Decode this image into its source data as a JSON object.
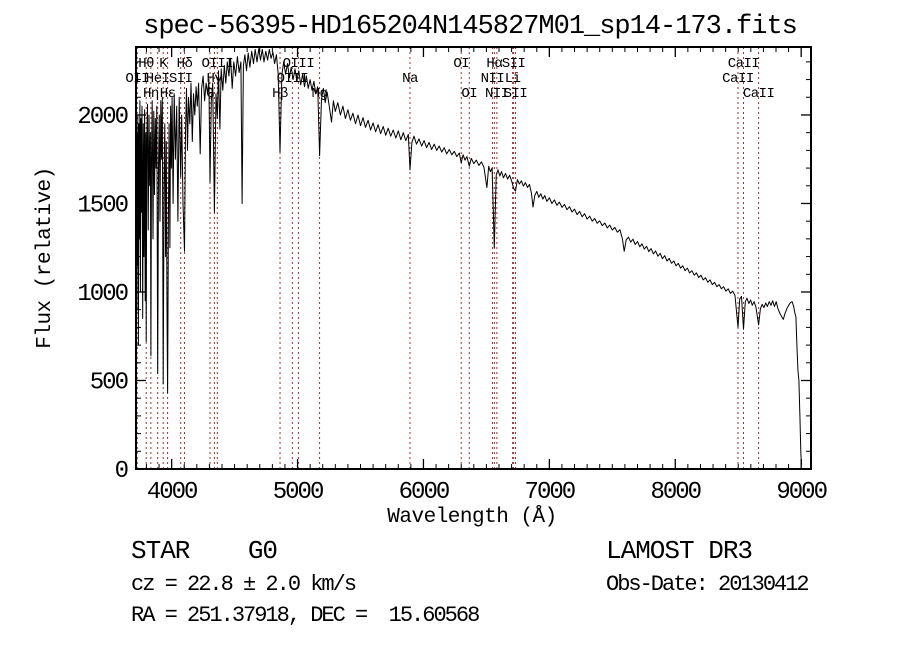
{
  "title": "spec-56395-HD165204N145827M01_sp14-173.fits",
  "annotations": {
    "class_label": "STAR    G0",
    "cz_label": "cz = 22.8 ± 2.0 km/s",
    "radec_label": "RA = 251.37918, DEC =  15.60568",
    "survey_label": "LAMOST DR3",
    "obsdate_label": "Obs-Date: 20130412"
  },
  "colors": {
    "spectrum": "#000000",
    "spectral_line_marker": "#993333",
    "frame": "#000000",
    "background": "#ffffff"
  },
  "chart_data": {
    "type": "line",
    "title": "spec-56395-HD165204N145827M01_sp14-173.fits",
    "xlabel": "Wavelength (Å)",
    "ylabel": "Flux (relative)",
    "xlim": [
      3717,
      9078
    ],
    "ylim": [
      0,
      2384
    ],
    "x_ticks": [
      4000,
      5000,
      6000,
      7000,
      8000,
      9000
    ],
    "y_ticks": [
      0,
      500,
      1000,
      1500,
      2000
    ],
    "x_minor_step": 100,
    "y_minor_step": 100,
    "grid": false,
    "legend": "none",
    "spectral_lines": [
      {
        "wavelength": 3727,
        "label": "OII",
        "row": 2
      },
      {
        "wavelength": 3798,
        "label": "Hθ",
        "row": 1
      },
      {
        "wavelength": 3835,
        "label": "Hη",
        "row": 3
      },
      {
        "wavelength": 3889,
        "label": "HeI",
        "row": 2
      },
      {
        "wavelength": 3933,
        "label": "K",
        "row": 1
      },
      {
        "wavelength": 3968,
        "label": "Hε",
        "row": 3
      },
      {
        "wavelength": 4072,
        "label": "SII",
        "row": 2
      },
      {
        "wavelength": 4102,
        "label": "Hδ",
        "row": 1
      },
      {
        "wavelength": 4305,
        "label": "G",
        "row": 3
      },
      {
        "wavelength": 4340,
        "label": "Hγ",
        "row": 2
      },
      {
        "wavelength": 4363,
        "label": "OIII",
        "row": 1
      },
      {
        "wavelength": 4861,
        "label": "Hβ",
        "row": 3
      },
      {
        "wavelength": 4959,
        "label": "OIII",
        "row": 2
      },
      {
        "wavelength": 5007,
        "label": "OIII",
        "row": 1
      },
      {
        "wavelength": 5175,
        "label": "Mg",
        "row": 3
      },
      {
        "wavelength": 5893,
        "label": "Na",
        "row": 2
      },
      {
        "wavelength": 6300,
        "label": "OI",
        "row": 1
      },
      {
        "wavelength": 6364,
        "label": "OI",
        "row": 3
      },
      {
        "wavelength": 6548,
        "label": "NII",
        "row": 2
      },
      {
        "wavelength": 6563,
        "label": "Hα",
        "row": 1
      },
      {
        "wavelength": 6583,
        "label": "NII",
        "row": 3
      },
      {
        "wavelength": 6708,
        "label": "Li",
        "row": 2
      },
      {
        "wavelength": 6716,
        "label": "SII",
        "row": 1
      },
      {
        "wavelength": 6731,
        "label": "SII",
        "row": 3
      },
      {
        "wavelength": 8498,
        "label": "CaII",
        "row": 2
      },
      {
        "wavelength": 8542,
        "label": "CaII",
        "row": 1
      },
      {
        "wavelength": 8662,
        "label": "CaII",
        "row": 3
      }
    ],
    "spectrum": [
      [
        3717,
        1350
      ],
      [
        3720,
        2050
      ],
      [
        3723,
        900
      ],
      [
        3726,
        1900
      ],
      [
        3729,
        1150
      ],
      [
        3732,
        2000
      ],
      [
        3736,
        700
      ],
      [
        3740,
        1950
      ],
      [
        3744,
        1300
      ],
      [
        3748,
        2080
      ],
      [
        3752,
        1000
      ],
      [
        3756,
        1980
      ],
      [
        3760,
        1450
      ],
      [
        3765,
        2050
      ],
      [
        3770,
        850
      ],
      [
        3775,
        1950
      ],
      [
        3780,
        1200
      ],
      [
        3785,
        2030
      ],
      [
        3790,
        950
      ],
      [
        3795,
        1900
      ],
      [
        3798,
        720
      ],
      [
        3803,
        1850
      ],
      [
        3808,
        2060
      ],
      [
        3814,
        1350
      ],
      [
        3820,
        2000
      ],
      [
        3826,
        1600
      ],
      [
        3831,
        1900
      ],
      [
        3835,
        640
      ],
      [
        3840,
        1750
      ],
      [
        3846,
        2080
      ],
      [
        3852,
        1300
      ],
      [
        3858,
        2020
      ],
      [
        3864,
        1550
      ],
      [
        3870,
        1980
      ],
      [
        3876,
        1700
      ],
      [
        3882,
        2050
      ],
      [
        3889,
        540
      ],
      [
        3896,
        1700
      ],
      [
        3902,
        2000
      ],
      [
        3908,
        1400
      ],
      [
        3914,
        2080
      ],
      [
        3920,
        1750
      ],
      [
        3926,
        2100
      ],
      [
        3933,
        480
      ],
      [
        3940,
        1650
      ],
      [
        3946,
        1950
      ],
      [
        3952,
        1200
      ],
      [
        3958,
        1850
      ],
      [
        3963,
        900
      ],
      [
        3968,
        430
      ],
      [
        3974,
        1400
      ],
      [
        3980,
        1950
      ],
      [
        3986,
        1250
      ],
      [
        3992,
        2050
      ],
      [
        3998,
        1700
      ],
      [
        4004,
        2100
      ],
      [
        4012,
        1500
      ],
      [
        4020,
        2120
      ],
      [
        4030,
        1750
      ],
      [
        4040,
        2050
      ],
      [
        4050,
        1400
      ],
      [
        4060,
        2100
      ],
      [
        4072,
        1650
      ],
      [
        4080,
        2000
      ],
      [
        4090,
        1500
      ],
      [
        4102,
        1230
      ],
      [
        4110,
        1900
      ],
      [
        4118,
        2150
      ],
      [
        4126,
        1800
      ],
      [
        4134,
        2100
      ],
      [
        4144,
        1950
      ],
      [
        4154,
        2180
      ],
      [
        4164,
        1850
      ],
      [
        4174,
        2120
      ],
      [
        4184,
        2000
      ],
      [
        4194,
        2160
      ],
      [
        4204,
        2050
      ],
      [
        4214,
        2180
      ],
      [
        4227,
        1780
      ],
      [
        4238,
        2150
      ],
      [
        4250,
        2220
      ],
      [
        4262,
        2080
      ],
      [
        4274,
        2180
      ],
      [
        4286,
        2120
      ],
      [
        4296,
        2200
      ],
      [
        4305,
        1620
      ],
      [
        4315,
        2080
      ],
      [
        4326,
        2180
      ],
      [
        4340,
        1450
      ],
      [
        4352,
        2120
      ],
      [
        4363,
        1980
      ],
      [
        4372,
        2250
      ],
      [
        4383,
        1920
      ],
      [
        4394,
        2260
      ],
      [
        4406,
        2140
      ],
      [
        4418,
        2280
      ],
      [
        4430,
        2180
      ],
      [
        4442,
        2300
      ],
      [
        4455,
        2220
      ],
      [
        4468,
        2320
      ],
      [
        4481,
        2150
      ],
      [
        4494,
        2300
      ],
      [
        4508,
        2220
      ],
      [
        4522,
        2330
      ],
      [
        4536,
        2240
      ],
      [
        4550,
        2300
      ],
      [
        4560,
        1500
      ],
      [
        4570,
        2280
      ],
      [
        4582,
        2340
      ],
      [
        4595,
        2250
      ],
      [
        4608,
        2350
      ],
      [
        4622,
        2270
      ],
      [
        4636,
        2360
      ],
      [
        4650,
        2290
      ],
      [
        4664,
        2370
      ],
      [
        4678,
        2300
      ],
      [
        4692,
        2375
      ],
      [
        4706,
        2310
      ],
      [
        4720,
        2370
      ],
      [
        4734,
        2300
      ],
      [
        4748,
        2360
      ],
      [
        4762,
        2310
      ],
      [
        4776,
        2370
      ],
      [
        4790,
        2320
      ],
      [
        4804,
        2355
      ],
      [
        4818,
        2290
      ],
      [
        4832,
        2340
      ],
      [
        4846,
        2230
      ],
      [
        4861,
        1790
      ],
      [
        4876,
        2230
      ],
      [
        4890,
        2300
      ],
      [
        4905,
        2230
      ],
      [
        4920,
        2290
      ],
      [
        4935,
        2210
      ],
      [
        4950,
        2270
      ],
      [
        4965,
        2200
      ],
      [
        4980,
        2260
      ],
      [
        4995,
        2190
      ],
      [
        5010,
        2250
      ],
      [
        5025,
        2170
      ],
      [
        5040,
        2230
      ],
      [
        5055,
        2160
      ],
      [
        5070,
        2220
      ],
      [
        5085,
        2150
      ],
      [
        5100,
        2200
      ],
      [
        5115,
        2140
      ],
      [
        5130,
        2190
      ],
      [
        5145,
        2120
      ],
      [
        5160,
        2160
      ],
      [
        5175,
        1770
      ],
      [
        5190,
        2090
      ],
      [
        5205,
        2150
      ],
      [
        5220,
        2070
      ],
      [
        5235,
        2130
      ],
      [
        5250,
        2060
      ],
      [
        5270,
        1960
      ],
      [
        5285,
        2080
      ],
      [
        5300,
        2020
      ],
      [
        5320,
        2070
      ],
      [
        5340,
        2000
      ],
      [
        5360,
        2050
      ],
      [
        5380,
        1980
      ],
      [
        5400,
        2030
      ],
      [
        5420,
        1970
      ],
      [
        5440,
        2010
      ],
      [
        5460,
        1950
      ],
      [
        5480,
        2000
      ],
      [
        5500,
        1940
      ],
      [
        5520,
        1985
      ],
      [
        5540,
        1930
      ],
      [
        5560,
        1970
      ],
      [
        5580,
        1915
      ],
      [
        5600,
        1955
      ],
      [
        5620,
        1905
      ],
      [
        5640,
        1945
      ],
      [
        5660,
        1895
      ],
      [
        5680,
        1935
      ],
      [
        5700,
        1885
      ],
      [
        5720,
        1925
      ],
      [
        5740,
        1880
      ],
      [
        5760,
        1915
      ],
      [
        5780,
        1870
      ],
      [
        5800,
        1910
      ],
      [
        5820,
        1860
      ],
      [
        5840,
        1900
      ],
      [
        5860,
        1855
      ],
      [
        5880,
        1890
      ],
      [
        5893,
        1690
      ],
      [
        5908,
        1845
      ],
      [
        5925,
        1880
      ],
      [
        5945,
        1835
      ],
      [
        5965,
        1865
      ],
      [
        5985,
        1825
      ],
      [
        6005,
        1855
      ],
      [
        6025,
        1815
      ],
      [
        6045,
        1845
      ],
      [
        6065,
        1805
      ],
      [
        6085,
        1835
      ],
      [
        6105,
        1800
      ],
      [
        6125,
        1825
      ],
      [
        6145,
        1790
      ],
      [
        6165,
        1815
      ],
      [
        6185,
        1780
      ],
      [
        6205,
        1805
      ],
      [
        6225,
        1775
      ],
      [
        6245,
        1795
      ],
      [
        6265,
        1765
      ],
      [
        6285,
        1785
      ],
      [
        6300,
        1730
      ],
      [
        6315,
        1775
      ],
      [
        6330,
        1745
      ],
      [
        6345,
        1765
      ],
      [
        6364,
        1710
      ],
      [
        6380,
        1755
      ],
      [
        6400,
        1725
      ],
      [
        6420,
        1745
      ],
      [
        6440,
        1715
      ],
      [
        6460,
        1735
      ],
      [
        6480,
        1705
      ],
      [
        6504,
        1590
      ],
      [
        6518,
        1710
      ],
      [
        6532,
        1680
      ],
      [
        6545,
        1700
      ],
      [
        6563,
        1250
      ],
      [
        6578,
        1660
      ],
      [
        6592,
        1690
      ],
      [
        6606,
        1655
      ],
      [
        6620,
        1680
      ],
      [
        6636,
        1645
      ],
      [
        6652,
        1670
      ],
      [
        6668,
        1638
      ],
      [
        6684,
        1660
      ],
      [
        6700,
        1628
      ],
      [
        6716,
        1585
      ],
      [
        6731,
        1570
      ],
      [
        6746,
        1635
      ],
      [
        6762,
        1610
      ],
      [
        6778,
        1628
      ],
      [
        6794,
        1598
      ],
      [
        6810,
        1618
      ],
      [
        6826,
        1590
      ],
      [
        6842,
        1608
      ],
      [
        6858,
        1555
      ],
      [
        6870,
        1480
      ],
      [
        6884,
        1545
      ],
      [
        6900,
        1568
      ],
      [
        6916,
        1535
      ],
      [
        6932,
        1555
      ],
      [
        6948,
        1525
      ],
      [
        6964,
        1545
      ],
      [
        6980,
        1512
      ],
      [
        7000,
        1532
      ],
      [
        7020,
        1500
      ],
      [
        7040,
        1520
      ],
      [
        7060,
        1490
      ],
      [
        7080,
        1508
      ],
      [
        7100,
        1478
      ],
      [
        7120,
        1495
      ],
      [
        7140,
        1465
      ],
      [
        7160,
        1482
      ],
      [
        7180,
        1452
      ],
      [
        7200,
        1468
      ],
      [
        7220,
        1438
      ],
      [
        7240,
        1455
      ],
      [
        7260,
        1425
      ],
      [
        7280,
        1442
      ],
      [
        7300,
        1412
      ],
      [
        7320,
        1428
      ],
      [
        7340,
        1400
      ],
      [
        7360,
        1415
      ],
      [
        7380,
        1388
      ],
      [
        7400,
        1402
      ],
      [
        7420,
        1375
      ],
      [
        7440,
        1390
      ],
      [
        7460,
        1362
      ],
      [
        7480,
        1378
      ],
      [
        7500,
        1350
      ],
      [
        7520,
        1365
      ],
      [
        7540,
        1338
      ],
      [
        7560,
        1352
      ],
      [
        7580,
        1300
      ],
      [
        7594,
        1230
      ],
      [
        7610,
        1295
      ],
      [
        7628,
        1310
      ],
      [
        7646,
        1282
      ],
      [
        7664,
        1298
      ],
      [
        7682,
        1268
      ],
      [
        7700,
        1285
      ],
      [
        7718,
        1255
      ],
      [
        7736,
        1272
      ],
      [
        7754,
        1242
      ],
      [
        7772,
        1258
      ],
      [
        7790,
        1228
      ],
      [
        7808,
        1245
      ],
      [
        7826,
        1215
      ],
      [
        7844,
        1232
      ],
      [
        7862,
        1202
      ],
      [
        7880,
        1218
      ],
      [
        7898,
        1188
      ],
      [
        7916,
        1205
      ],
      [
        7934,
        1175
      ],
      [
        7952,
        1190
      ],
      [
        7970,
        1162
      ],
      [
        7988,
        1175
      ],
      [
        8006,
        1148
      ],
      [
        8024,
        1162
      ],
      [
        8042,
        1135
      ],
      [
        8060,
        1148
      ],
      [
        8078,
        1120
      ],
      [
        8096,
        1135
      ],
      [
        8114,
        1108
      ],
      [
        8132,
        1120
      ],
      [
        8150,
        1095
      ],
      [
        8168,
        1108
      ],
      [
        8186,
        1082
      ],
      [
        8204,
        1095
      ],
      [
        8222,
        1068
      ],
      [
        8240,
        1080
      ],
      [
        8258,
        1055
      ],
      [
        8276,
        1068
      ],
      [
        8294,
        1042
      ],
      [
        8312,
        1055
      ],
      [
        8330,
        1030
      ],
      [
        8348,
        1042
      ],
      [
        8366,
        1018
      ],
      [
        8384,
        1030
      ],
      [
        8402,
        1005
      ],
      [
        8420,
        1018
      ],
      [
        8438,
        992
      ],
      [
        8456,
        1005
      ],
      [
        8474,
        980
      ],
      [
        8498,
        800
      ],
      [
        8512,
        960
      ],
      [
        8526,
        975
      ],
      [
        8542,
        790
      ],
      [
        8556,
        945
      ],
      [
        8570,
        965
      ],
      [
        8584,
        935
      ],
      [
        8598,
        955
      ],
      [
        8612,
        925
      ],
      [
        8626,
        945
      ],
      [
        8640,
        915
      ],
      [
        8662,
        815
      ],
      [
        8676,
        905
      ],
      [
        8690,
        930
      ],
      [
        8704,
        912
      ],
      [
        8718,
        938
      ],
      [
        8732,
        918
      ],
      [
        8746,
        945
      ],
      [
        8760,
        925
      ],
      [
        8774,
        950
      ],
      [
        8788,
        918
      ],
      [
        8802,
        945
      ],
      [
        8816,
        905
      ],
      [
        8830,
        880
      ],
      [
        8844,
        862
      ],
      [
        8858,
        845
      ],
      [
        8872,
        880
      ],
      [
        8886,
        905
      ],
      [
        8900,
        925
      ],
      [
        8914,
        940
      ],
      [
        8928,
        945
      ],
      [
        8940,
        920
      ],
      [
        8950,
        880
      ],
      [
        8958,
        860
      ],
      [
        8966,
        700
      ],
      [
        8974,
        560
      ],
      [
        8982,
        500
      ],
      [
        8990,
        300
      ],
      [
        8998,
        80
      ],
      [
        9003,
        25
      ]
    ]
  }
}
